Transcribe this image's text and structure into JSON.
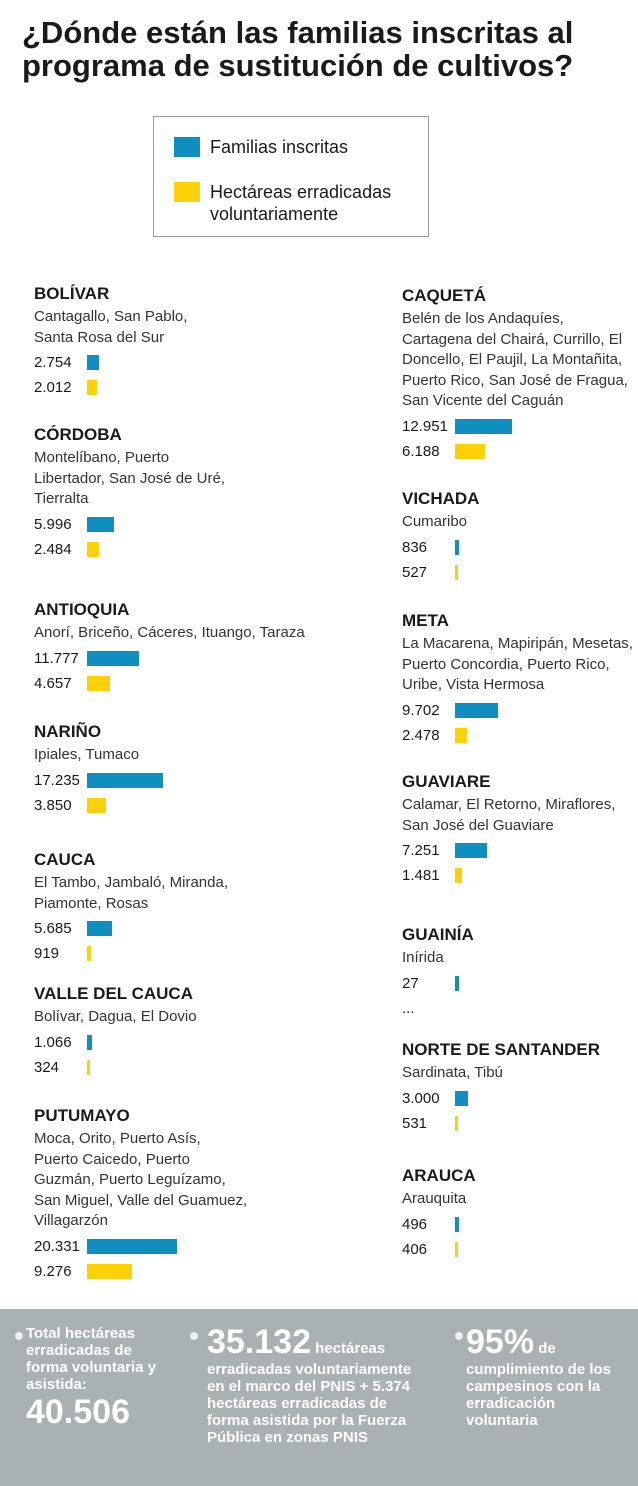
{
  "title": "¿Dónde están las familias inscritas al programa de sustitución de cultivos?",
  "legend": {
    "families_label": "Familias inscritas",
    "hectares_label": "Hectáreas erradicadas voluntariamente"
  },
  "colors": {
    "families": "#0e8fbf",
    "hectares": "#fed106",
    "footer_bg": "#a9b1b3"
  },
  "chart_data": {
    "type": "bar",
    "orientation": "horizontal",
    "series": [
      {
        "name": "Familias inscritas",
        "color": "#0e8fbf"
      },
      {
        "name": "Hectáreas erradicadas voluntariamente",
        "color": "#fed106"
      }
    ],
    "regions": [
      {
        "name": "BOLÍVAR",
        "municipalities": "Cantagallo, San Pablo, Santa Rosa del Sur",
        "families": 2754,
        "families_label": "2.754",
        "hectares": 2012,
        "hectares_label": "2.012"
      },
      {
        "name": "CÓRDOBA",
        "municipalities": "Montelíbano, Puerto Libertador, San José de Uré, Tierralta",
        "families": 5996,
        "families_label": "5.996",
        "hectares": 2484,
        "hectares_label": "2.484"
      },
      {
        "name": "ANTIOQUIA",
        "municipalities": "Anorí, Briceño, Cáceres, Ituango, Taraza",
        "families": 11777,
        "families_label": "11.777",
        "hectares": 4657,
        "hectares_label": "4.657"
      },
      {
        "name": "NARIÑO",
        "municipalities": "Ipiales, Tumaco",
        "families": 17235,
        "families_label": "17.235",
        "hectares": 3850,
        "hectares_label": "3.850"
      },
      {
        "name": "CAUCA",
        "municipalities": "El Tambo, Jambaló, Miranda, Piamonte, Rosas",
        "families": 5685,
        "families_label": "5.685",
        "hectares": 919,
        "hectares_label": "919"
      },
      {
        "name": "VALLE DEL CAUCA",
        "municipalities": "Bolívar, Dagua, El Dovio",
        "families": 1066,
        "families_label": "1.066",
        "hectares": 324,
        "hectares_label": "324"
      },
      {
        "name": "PUTUMAYO",
        "municipalities": "Moca, Orito, Puerto Asís, Puerto Caicedo, Puerto Guzmán, Puerto Leguízamo, San Miguel, Valle del Guamuez, Villagarzón",
        "families": 20331,
        "families_label": "20.331",
        "hectares": 9276,
        "hectares_label": "9.276"
      },
      {
        "name": "CAQUETÁ",
        "municipalities": "Belén de los Andaquíes, Cartagena del Chairá, Currillo, El Doncello, El Paujil, La Montañita, Puerto Rico, San José de Fragua, San Vicente del Caguán",
        "families": 12951,
        "families_label": "12.951",
        "hectares": 6188,
        "hectares_label": "6.188"
      },
      {
        "name": "VICHADA",
        "municipalities": "Cumaribo",
        "families": 836,
        "families_label": "836",
        "hectares": 527,
        "hectares_label": "527"
      },
      {
        "name": "META",
        "municipalities": "La Macarena, Mapiripán, Mesetas, Puerto Concordia, Puerto Rico, Uribe, Vista Hermosa",
        "families": 9702,
        "families_label": "9.702",
        "hectares": 2478,
        "hectares_label": "2.478"
      },
      {
        "name": "GUAVIARE",
        "municipalities": "Calamar, El Retorno, Miraflores, San José del Guaviare",
        "families": 7251,
        "families_label": "7.251",
        "hectares": 1481,
        "hectares_label": "1.481"
      },
      {
        "name": "GUAINÍA",
        "municipalities": "Inírida",
        "families": 27,
        "families_label": "27",
        "hectares": null,
        "hectares_label": "..."
      },
      {
        "name": "NORTE DE SANTANDER",
        "municipalities": "Sardinata, Tibú",
        "families": 3000,
        "families_label": "3.000",
        "hectares": 531,
        "hectares_label": "531"
      },
      {
        "name": "ARAUCA",
        "municipalities": "Arauquita",
        "families": 496,
        "families_label": "496",
        "hectares": 406,
        "hectares_label": "406"
      }
    ]
  },
  "footer": {
    "stat1_text": "Total hectáreas erradicadas de forma voluntaria y asistida:",
    "stat1_value": "40.506",
    "stat2_value": "35.132",
    "stat2_text_a": "hectáreas",
    "stat2_text_b": "erradicadas voluntariamente en el marco del PNIS + 5.374 hectáreas erradicadas de forma asistida por la Fuerza Pública en zonas PNIS",
    "stat3_value": "95%",
    "stat3_text_a": "de",
    "stat3_text_b": "cumplimiento de los campesinos con la erradicación voluntaria"
  }
}
